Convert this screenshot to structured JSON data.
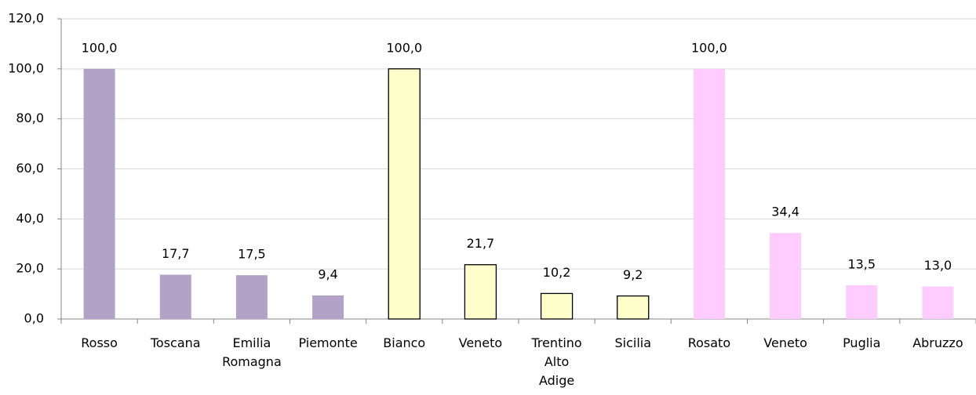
{
  "chart_data": {
    "type": "bar",
    "categories": [
      "Rosso",
      "Toscana",
      "Emilia\nRomagna",
      "Piemonte",
      "Bianco",
      "Veneto",
      "Trentino\nAlto\nAdige",
      "Sicilia",
      "Rosato",
      "Veneto",
      "Puglia",
      "Abruzzo"
    ],
    "values": [
      100,
      17.7,
      17.5,
      9.4,
      100,
      21.7,
      10.2,
      9.2,
      100,
      34.4,
      13.5,
      13.0
    ],
    "value_labels": [
      "100,0",
      "17,7",
      "17,5",
      "9,4",
      "100,0",
      "21,7",
      "10,2",
      "9,2",
      "100,0",
      "34,4",
      "13,5",
      "13,0"
    ],
    "colors": [
      "#b3a2c7",
      "#b3a2c7",
      "#b3a2c7",
      "#b3a2c7",
      "#ffffcc",
      "#ffffcc",
      "#ffffcc",
      "#ffffcc",
      "#ffccff",
      "#ffccff",
      "#ffccff",
      "#ffccff"
    ],
    "edgecolors": [
      null,
      null,
      null,
      null,
      "#000000",
      "#000000",
      "#000000",
      "#000000",
      null,
      null,
      null,
      null
    ],
    "ylim": [
      0,
      120
    ],
    "yticks": [
      {
        "value": 0,
        "label": "0,0"
      },
      {
        "value": 20,
        "label": "20,0"
      },
      {
        "value": 40,
        "label": "40,0"
      },
      {
        "value": 60,
        "label": "60,0"
      },
      {
        "value": 80,
        "label": "80,0"
      },
      {
        "value": 100,
        "label": "100,0"
      },
      {
        "value": 120,
        "label": "120,0"
      }
    ],
    "grid": true
  }
}
